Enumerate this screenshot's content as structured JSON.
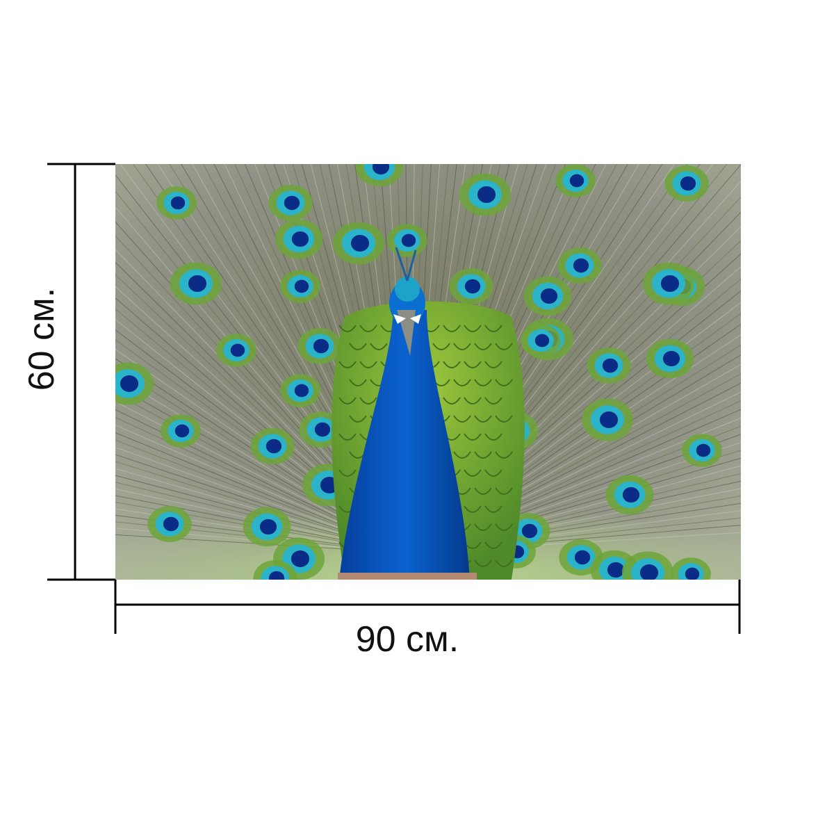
{
  "product": {
    "width_label": "90 см.",
    "height_label": "60 см."
  },
  "photo": {
    "subject": "peacock-with-open-tail",
    "colors": {
      "neck": "#0a5bc4",
      "breast_scales": "#7fb432",
      "feather_background": "#8f9184",
      "eye_outer": "#6da53a",
      "eye_ring": "#2bb3c9",
      "eye_center": "#0b2c86"
    }
  },
  "dimension_line_color": "#000000"
}
